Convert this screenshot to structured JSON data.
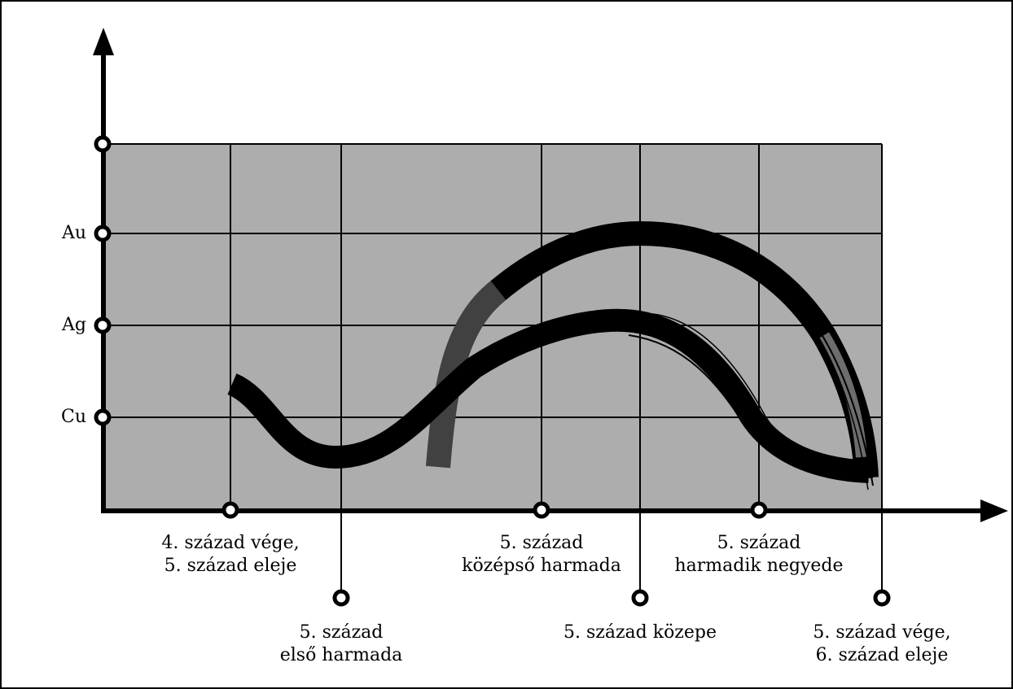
{
  "y_axis": {
    "labels": [
      "Au",
      "Ag",
      "Cu"
    ]
  },
  "x_axis": {
    "labels": [
      "4. század vége,\n5. század eleje",
      "5. század\nelső harmada",
      "5. század\nközépső harmada",
      "5. század közepe",
      "5. század\nharmadik negyede",
      "5. század vége,\n6. század eleje"
    ]
  },
  "colors": {
    "plot_background": "#adadad",
    "grid": "#000000",
    "curve": "#000000",
    "curve_shadow": "#7a7a7a"
  }
}
